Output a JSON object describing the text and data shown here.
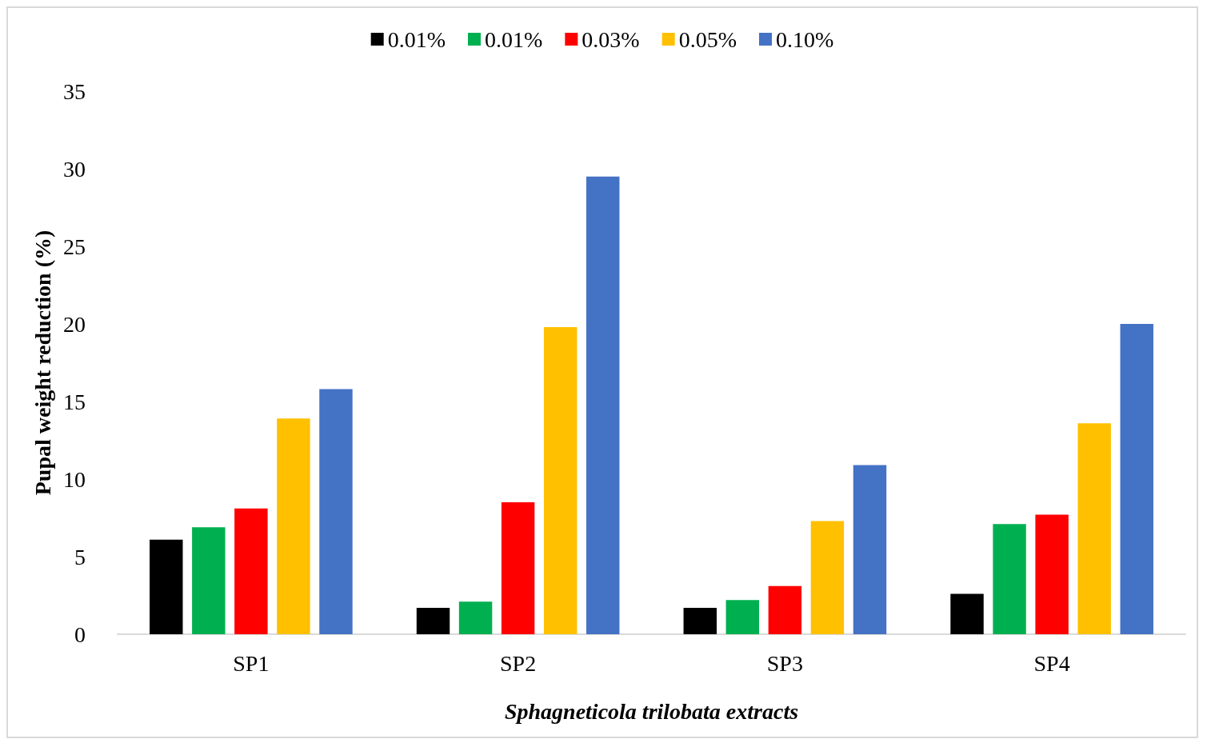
{
  "chart_data": {
    "type": "bar",
    "categories": [
      "SP1",
      "SP2",
      "SP3",
      "SP4"
    ],
    "series": [
      {
        "name": "0.01%",
        "color": "#000000",
        "values": [
          6.1,
          1.7,
          1.7,
          2.6
        ]
      },
      {
        "name": "0.01%",
        "color": "#00b050",
        "values": [
          6.9,
          2.1,
          2.2,
          7.1
        ]
      },
      {
        "name": "0.03%",
        "color": "#ff0000",
        "values": [
          8.1,
          8.5,
          3.1,
          7.7
        ]
      },
      {
        "name": "0.05%",
        "color": "#ffc000",
        "values": [
          13.9,
          19.8,
          7.3,
          13.6
        ]
      },
      {
        "name": "0.10%",
        "color": "#4472c4",
        "values": [
          15.8,
          29.5,
          10.9,
          20.0
        ]
      }
    ],
    "xlabel": "Sphagneticola trilobata extracts",
    "ylabel": "Pupal weight reduction (%)",
    "ylim": [
      0,
      35
    ],
    "yticks": [
      0,
      5,
      10,
      15,
      20,
      25,
      30,
      35
    ],
    "grid": false,
    "legend": "top"
  }
}
